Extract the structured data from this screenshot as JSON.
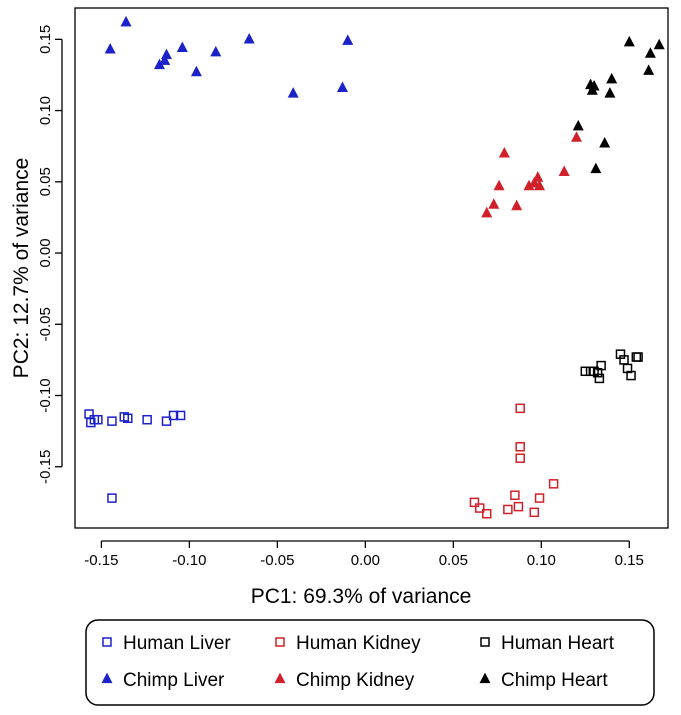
{
  "chart_data": {
    "type": "scatter",
    "title": "",
    "xlabel": "PC1: 69.3% of variance",
    "ylabel": "PC2: 12.7% of variance",
    "xlim": [
      -0.165,
      0.172
    ],
    "ylim": [
      -0.193,
      0.172
    ],
    "xticks": [
      -0.15,
      -0.1,
      -0.05,
      0.0,
      0.05,
      0.1,
      0.15
    ],
    "xtick_labels": [
      "-0.15",
      "-0.10",
      "-0.05",
      "0.00",
      "0.05",
      "0.10",
      "0.15"
    ],
    "yticks": [
      -0.15,
      -0.1,
      -0.05,
      0.0,
      0.05,
      0.1,
      0.15
    ],
    "ytick_labels": [
      "-0.15",
      "-0.10",
      "-0.05",
      "0.00",
      "0.05",
      "0.10",
      "0.15"
    ],
    "grid": false,
    "legend_position": "bottom",
    "series": [
      {
        "name": "Human Liver",
        "marker": "square",
        "color": "#1c22c9",
        "points": [
          [
            -0.157,
            -0.113
          ],
          [
            -0.156,
            -0.119
          ],
          [
            -0.154,
            -0.117
          ],
          [
            -0.152,
            -0.117
          ],
          [
            -0.144,
            -0.118
          ],
          [
            -0.137,
            -0.115
          ],
          [
            -0.135,
            -0.116
          ],
          [
            -0.124,
            -0.117
          ],
          [
            -0.113,
            -0.118
          ],
          [
            -0.109,
            -0.114
          ],
          [
            -0.105,
            -0.114
          ],
          [
            -0.144,
            -0.172
          ]
        ]
      },
      {
        "name": "Human Kidney",
        "marker": "square",
        "color": "#d0202a",
        "points": [
          [
            0.088,
            -0.109
          ],
          [
            0.088,
            -0.136
          ],
          [
            0.088,
            -0.144
          ],
          [
            0.062,
            -0.175
          ],
          [
            0.065,
            -0.179
          ],
          [
            0.069,
            -0.183
          ],
          [
            0.081,
            -0.18
          ],
          [
            0.085,
            -0.17
          ],
          [
            0.087,
            -0.178
          ],
          [
            0.096,
            -0.182
          ],
          [
            0.099,
            -0.172
          ],
          [
            0.107,
            -0.162
          ]
        ]
      },
      {
        "name": "Human Heart",
        "marker": "square",
        "color": "#000000",
        "points": [
          [
            0.125,
            -0.083
          ],
          [
            0.128,
            -0.083
          ],
          [
            0.13,
            -0.083
          ],
          [
            0.132,
            -0.084
          ],
          [
            0.133,
            -0.088
          ],
          [
            0.134,
            -0.079
          ],
          [
            0.145,
            -0.071
          ],
          [
            0.147,
            -0.075
          ],
          [
            0.149,
            -0.081
          ],
          [
            0.151,
            -0.086
          ],
          [
            0.154,
            -0.073
          ],
          [
            0.155,
            -0.073
          ]
        ]
      },
      {
        "name": "Chimp Liver",
        "marker": "triangle",
        "color": "#1c22c9",
        "points": [
          [
            -0.145,
            0.143
          ],
          [
            -0.136,
            0.162
          ],
          [
            -0.117,
            0.132
          ],
          [
            -0.114,
            0.135
          ],
          [
            -0.113,
            0.139
          ],
          [
            -0.104,
            0.144
          ],
          [
            -0.096,
            0.127
          ],
          [
            -0.085,
            0.141
          ],
          [
            -0.066,
            0.15
          ],
          [
            -0.041,
            0.112
          ],
          [
            -0.013,
            0.116
          ],
          [
            -0.01,
            0.149
          ]
        ]
      },
      {
        "name": "Chimp Kidney",
        "marker": "triangle",
        "color": "#d0202a",
        "points": [
          [
            0.069,
            0.028
          ],
          [
            0.073,
            0.034
          ],
          [
            0.076,
            0.047
          ],
          [
            0.079,
            0.07
          ],
          [
            0.086,
            0.033
          ],
          [
            0.093,
            0.047
          ],
          [
            0.096,
            0.049
          ],
          [
            0.098,
            0.053
          ],
          [
            0.099,
            0.047
          ],
          [
            0.113,
            0.057
          ],
          [
            0.12,
            0.081
          ]
        ]
      },
      {
        "name": "Chimp Heart",
        "marker": "triangle",
        "color": "#000000",
        "points": [
          [
            0.121,
            0.089
          ],
          [
            0.128,
            0.118
          ],
          [
            0.129,
            0.114
          ],
          [
            0.13,
            0.117
          ],
          [
            0.131,
            0.059
          ],
          [
            0.136,
            0.077
          ],
          [
            0.139,
            0.112
          ],
          [
            0.14,
            0.122
          ],
          [
            0.15,
            0.148
          ],
          [
            0.161,
            0.128
          ],
          [
            0.162,
            0.14
          ],
          [
            0.167,
            0.146
          ]
        ]
      }
    ],
    "legend": {
      "rows": [
        [
          "Human Liver",
          "Human Kidney",
          "Human Heart"
        ],
        [
          "Chimp Liver",
          "Chimp Kidney",
          "Chimp Heart"
        ]
      ]
    }
  }
}
